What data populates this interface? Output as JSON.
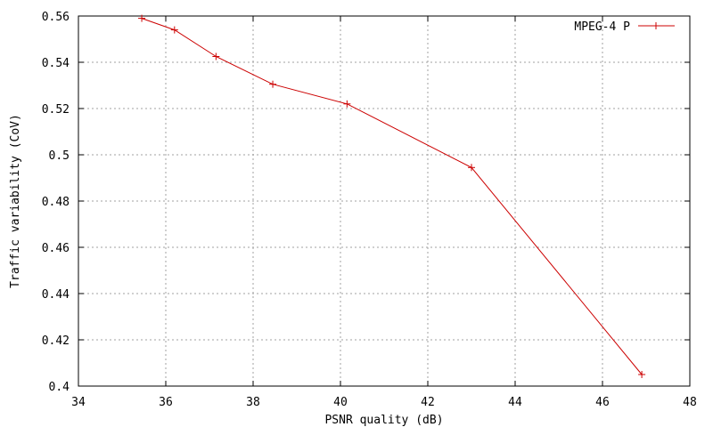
{
  "chart_data": {
    "type": "line",
    "xlabel": "PSNR quality (dB)",
    "ylabel": "Traffic variability (CoV)",
    "xlim": [
      34,
      48
    ],
    "ylim": [
      0.4,
      0.56
    ],
    "xticks": [
      "34",
      "36",
      "38",
      "40",
      "42",
      "44",
      "46",
      "48"
    ],
    "yticks": [
      "0.4",
      "0.42",
      "0.44",
      "0.46",
      "0.48",
      "0.5",
      "0.52",
      "0.54",
      "0.56"
    ],
    "grid": true,
    "legend_position": "top-right",
    "series": [
      {
        "name": "MPEG-4 P",
        "color": "#cc0000",
        "marker": "plus",
        "x": [
          35.45,
          36.2,
          37.15,
          38.45,
          40.15,
          43.0,
          46.9
        ],
        "y": [
          0.559,
          0.554,
          0.5425,
          0.5305,
          0.522,
          0.4945,
          0.405
        ]
      }
    ]
  }
}
